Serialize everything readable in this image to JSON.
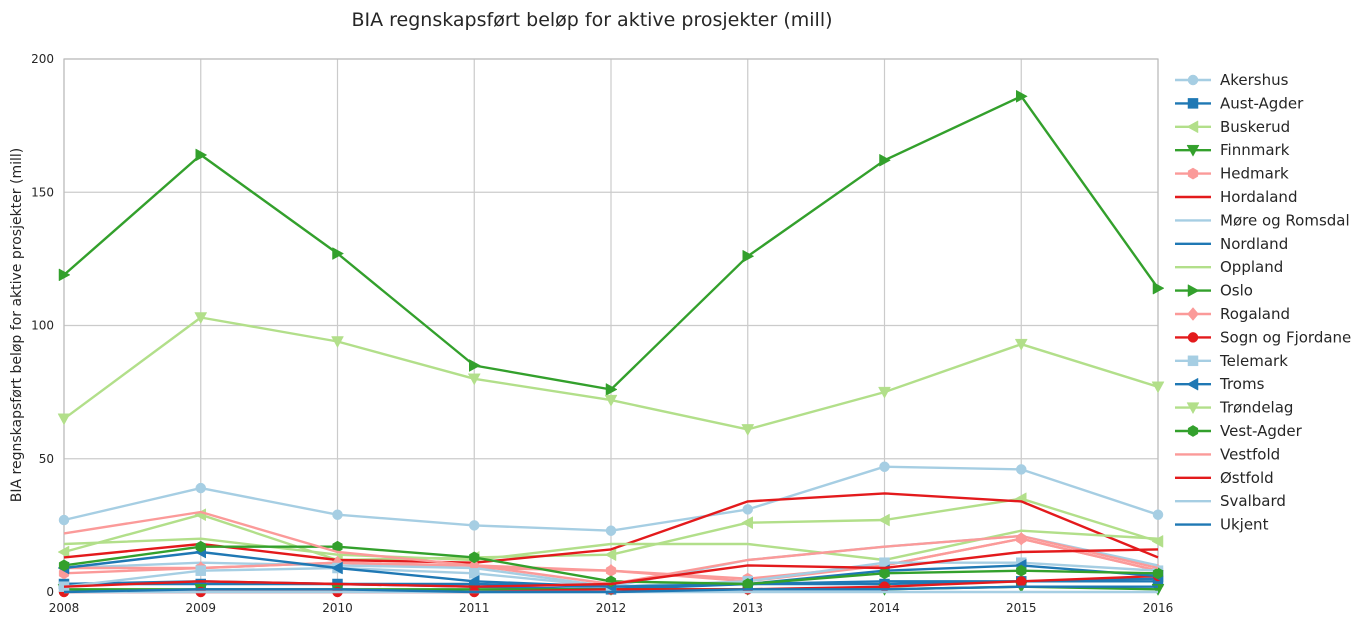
{
  "chart_data": {
    "type": "line",
    "title": "BIA regnskapsført beløp for aktive prosjekter (mill)",
    "xlabel": "",
    "ylabel": "BIA regnskapsført beløp for aktive prosjekter (mill)",
    "x": [
      2008,
      2009,
      2010,
      2011,
      2012,
      2013,
      2014,
      2015,
      2016
    ],
    "xlim": [
      2008,
      2016
    ],
    "ylim": [
      0,
      200
    ],
    "yticks": [
      0,
      50,
      100,
      150,
      200
    ],
    "grid": true,
    "legend_position": "right, outside",
    "series": [
      {
        "name": "Akershus",
        "color": "#a6cee3",
        "marker": "circle",
        "values": [
          27,
          39,
          29,
          25,
          23,
          31,
          47,
          46,
          29
        ]
      },
      {
        "name": "Aust-Agder",
        "color": "#1f78b4",
        "marker": "square",
        "values": [
          3,
          3,
          3,
          2,
          1,
          3,
          3,
          4,
          4
        ]
      },
      {
        "name": "Buskerud",
        "color": "#b2df8a",
        "marker": "triangle-left",
        "values": [
          15,
          29,
          12,
          13,
          14,
          26,
          27,
          35,
          19
        ]
      },
      {
        "name": "Finnmark",
        "color": "#33a02c",
        "marker": "triangle-down",
        "values": [
          1,
          1,
          1,
          1,
          1,
          1,
          1,
          2,
          1
        ]
      },
      {
        "name": "Hedmark",
        "color": "#fb9a99",
        "marker": "hexagon",
        "values": [
          7,
          9,
          11,
          9,
          8,
          5,
          10,
          20,
          8
        ]
      },
      {
        "name": "Hordaland",
        "color": "#e31a1c",
        "marker": "none",
        "values": [
          13,
          18,
          12,
          11,
          16,
          34,
          37,
          34,
          13
        ]
      },
      {
        "name": "Møre og Romsdal",
        "color": "#a6cee3",
        "marker": "none",
        "values": [
          9,
          11,
          10,
          9,
          2,
          12,
          17,
          21,
          10
        ]
      },
      {
        "name": "Nordland",
        "color": "#1f78b4",
        "marker": "none",
        "values": [
          3,
          4,
          3,
          3,
          2,
          3,
          4,
          4,
          5
        ]
      },
      {
        "name": "Oppland",
        "color": "#b2df8a",
        "marker": "none",
        "values": [
          18,
          20,
          14,
          12,
          18,
          18,
          12,
          23,
          20
        ]
      },
      {
        "name": "Oslo",
        "color": "#33a02c",
        "marker": "triangle-right",
        "values": [
          119,
          164,
          127,
          85,
          76,
          126,
          162,
          186,
          114
        ]
      },
      {
        "name": "Rogaland",
        "color": "#fb9a99",
        "marker": "diamond",
        "values": [
          9,
          9,
          11,
          10,
          8,
          4,
          10,
          20,
          8
        ]
      },
      {
        "name": "Sogn og Fjordane",
        "color": "#e31a1c",
        "marker": "circle",
        "values": [
          0,
          0,
          0,
          0,
          1,
          1,
          2,
          4,
          6
        ]
      },
      {
        "name": "Telemark",
        "color": "#a6cee3",
        "marker": "square",
        "values": [
          2,
          8,
          9,
          7,
          2,
          4,
          11,
          11,
          8
        ]
      },
      {
        "name": "Troms",
        "color": "#1f78b4",
        "marker": "triangle-left",
        "values": [
          9,
          15,
          9,
          4,
          2,
          3,
          8,
          10,
          6
        ]
      },
      {
        "name": "Trøndelag",
        "color": "#b2df8a",
        "marker": "triangle-down",
        "values": [
          65,
          103,
          94,
          80,
          72,
          61,
          75,
          93,
          77
        ]
      },
      {
        "name": "Vest-Agder",
        "color": "#33a02c",
        "marker": "hexagon",
        "values": [
          10,
          17,
          17,
          13,
          4,
          3,
          7,
          8,
          7
        ]
      },
      {
        "name": "Vestfold",
        "color": "#fb9a99",
        "marker": "none",
        "values": [
          22,
          30,
          15,
          10,
          3,
          12,
          17,
          21,
          9
        ]
      },
      {
        "name": "Østfold",
        "color": "#e31a1c",
        "marker": "none",
        "values": [
          2,
          4,
          3,
          2,
          3,
          10,
          9,
          15,
          16
        ]
      },
      {
        "name": "Svalbard",
        "color": "#a6cee3",
        "marker": "none",
        "values": [
          0,
          0,
          0,
          0,
          0,
          0,
          0,
          0,
          0
        ]
      },
      {
        "name": "Ukjent",
        "color": "#1f78b4",
        "marker": "none",
        "values": [
          0,
          1,
          1,
          0,
          0,
          1,
          1,
          2,
          2
        ]
      }
    ]
  }
}
